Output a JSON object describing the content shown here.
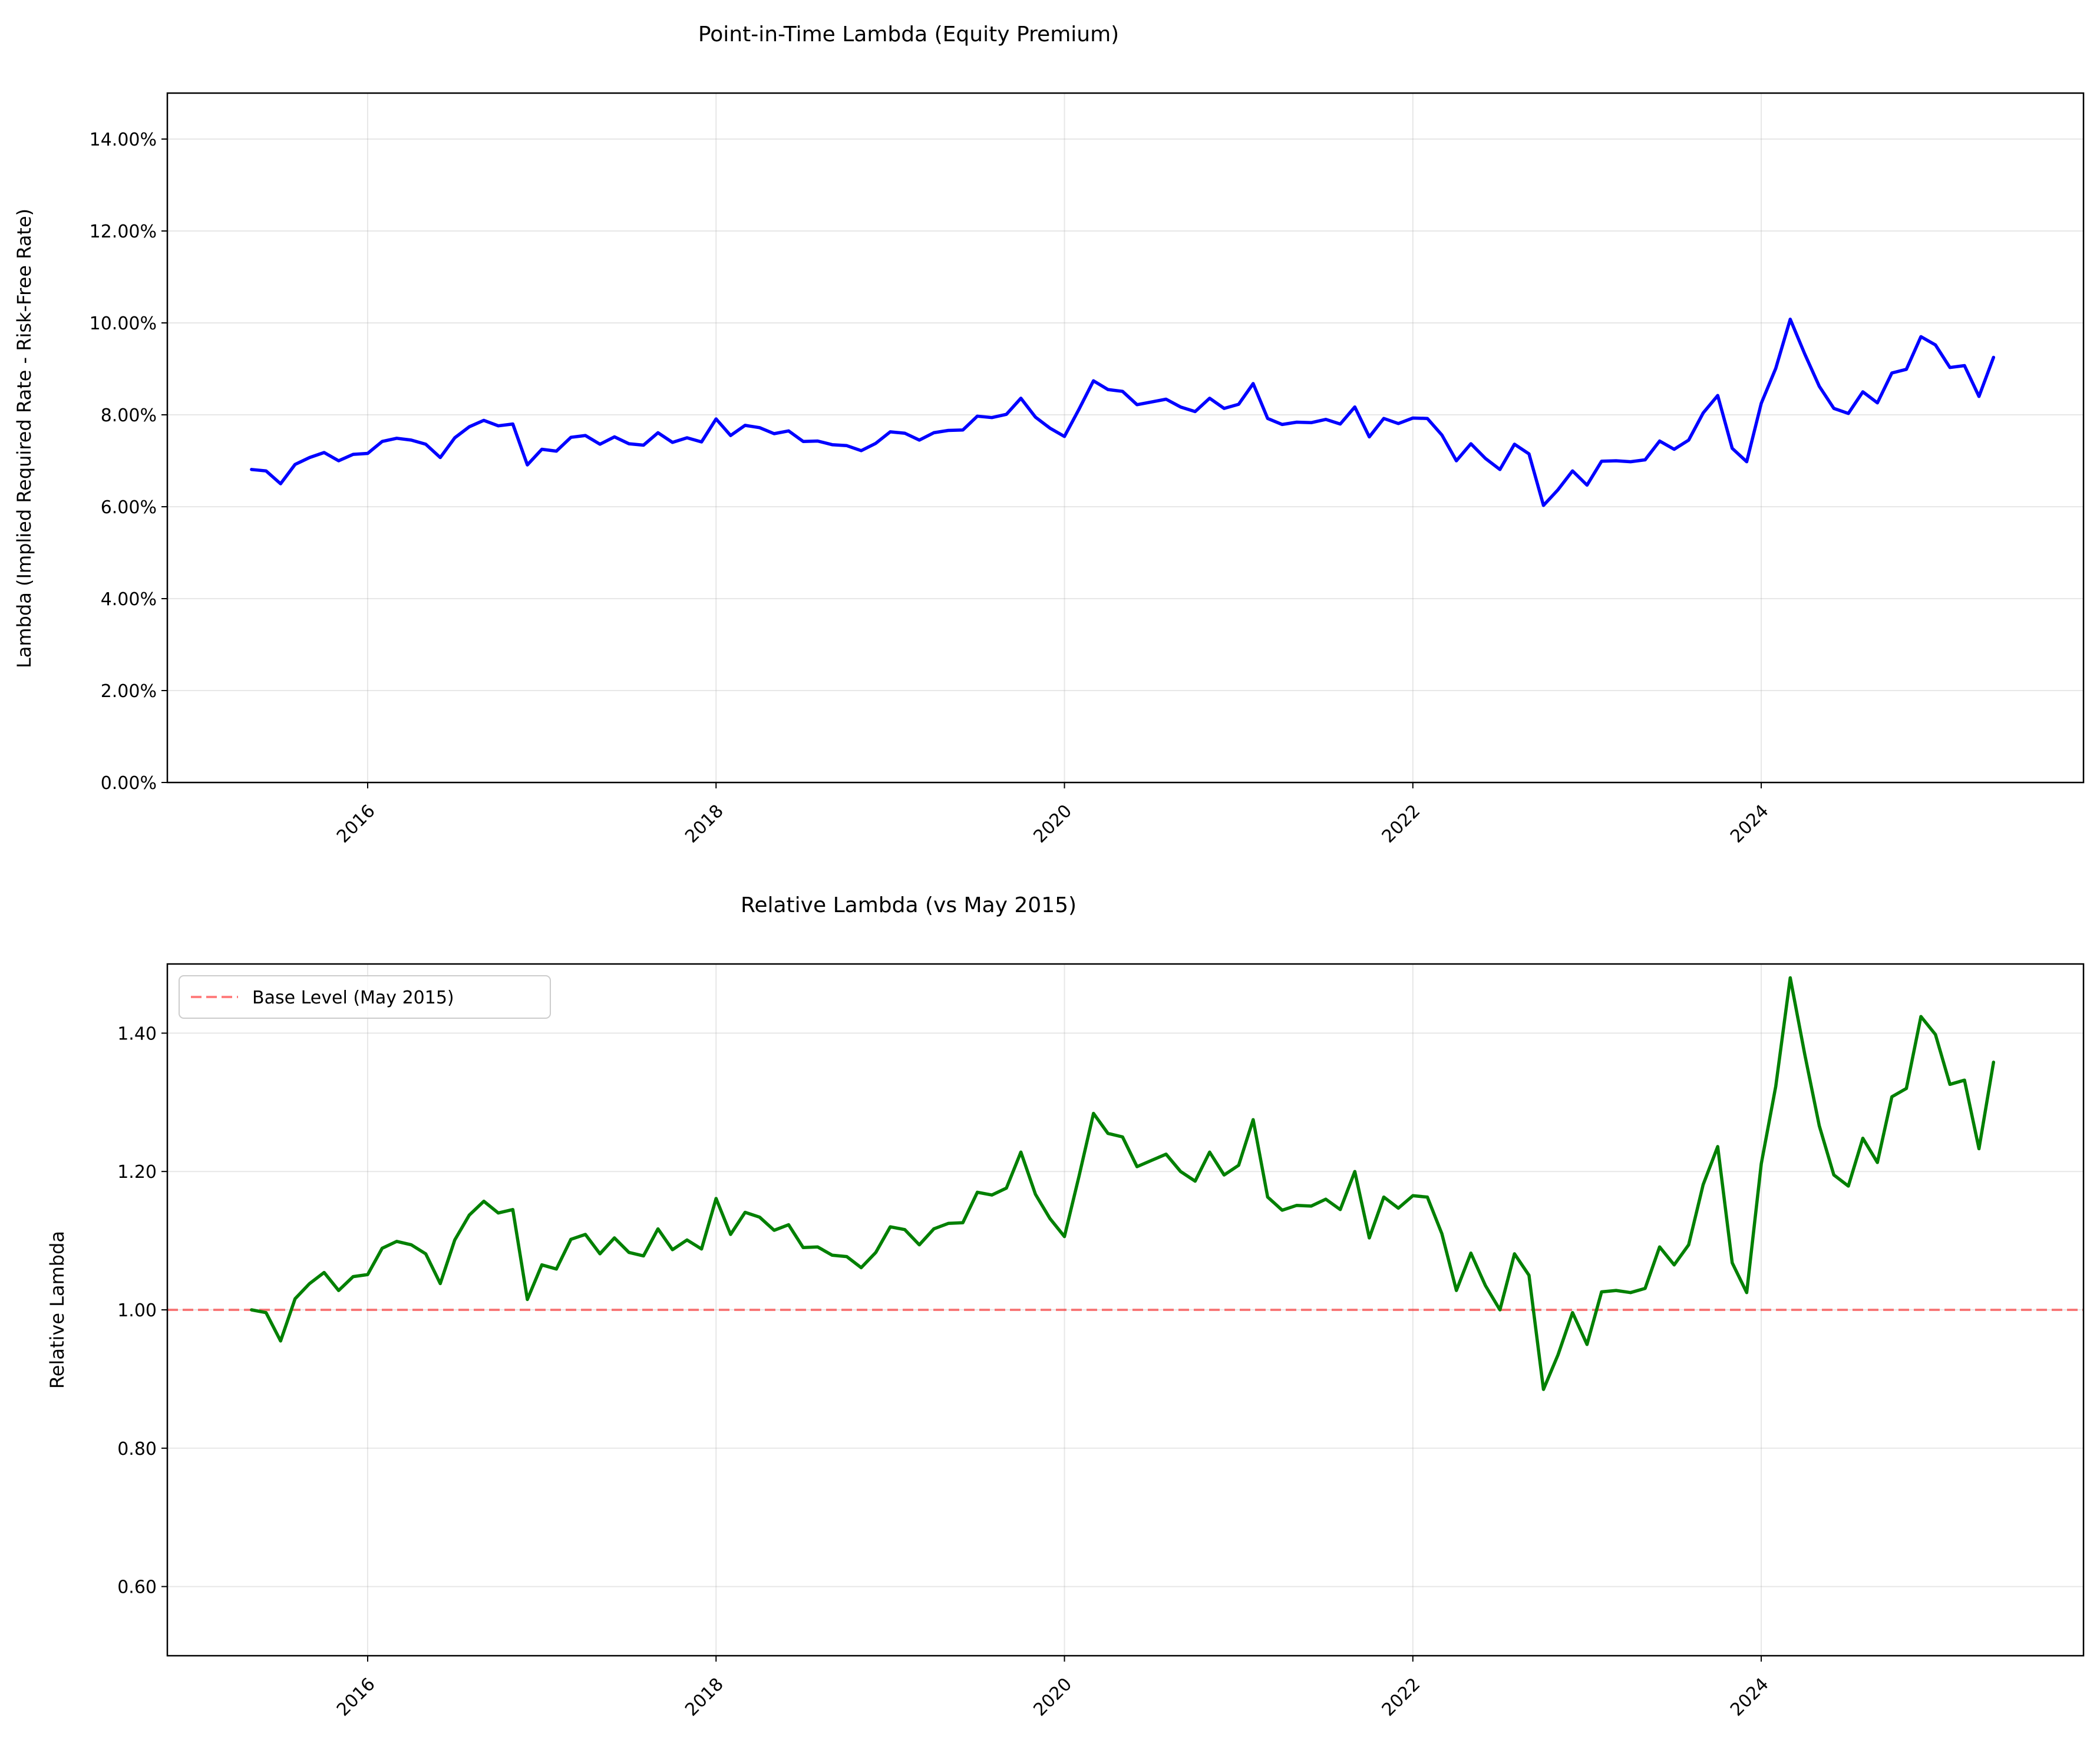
{
  "chart_data": [
    {
      "type": "line",
      "title": "Point-in-Time Lambda (Equity Premium)",
      "xlabel": "",
      "ylabel": "Lambda (Implied Required Rate - Risk-Free Rate)",
      "x_start": "2015-05",
      "x_frequency": "monthly",
      "xlim": [
        2014.85,
        2025.85
      ],
      "xticks": [
        2016,
        2018,
        2020,
        2022,
        2024
      ],
      "xtick_labels": [
        "2016",
        "2018",
        "2020",
        "2022",
        "2024"
      ],
      "ylim": [
        0,
        0.15
      ],
      "yticks": [
        0,
        0.02,
        0.04,
        0.06,
        0.08,
        0.1,
        0.12,
        0.14
      ],
      "ytick_labels": [
        "0.00%",
        "2.00%",
        "4.00%",
        "6.00%",
        "8.00%",
        "10.00%",
        "12.00%",
        "14.00%"
      ],
      "grid": true,
      "series": [
        {
          "color": "#0000ff",
          "values": [
            0.0681,
            0.0678,
            0.065,
            0.0692,
            0.0707,
            0.0718,
            0.07,
            0.0714,
            0.0716,
            0.0742,
            0.0749,
            0.0745,
            0.0736,
            0.0707,
            0.075,
            0.0774,
            0.0788,
            0.0776,
            0.078,
            0.0691,
            0.0725,
            0.0721,
            0.0751,
            0.0755,
            0.0736,
            0.0752,
            0.0737,
            0.0734,
            0.0761,
            0.074,
            0.075,
            0.0741,
            0.0791,
            0.0755,
            0.0777,
            0.0772,
            0.0759,
            0.0765,
            0.0742,
            0.0743,
            0.0735,
            0.0733,
            0.0722,
            0.0738,
            0.0763,
            0.076,
            0.0745,
            0.0761,
            0.0766,
            0.0767,
            0.0797,
            0.0794,
            0.0801,
            0.0836,
            0.0795,
            0.0771,
            0.0753,
            0.0812,
            0.0874,
            0.0855,
            0.0851,
            0.0822,
            0.0828,
            0.0834,
            0.0817,
            0.0807,
            0.0836,
            0.0814,
            0.0823,
            0.0868,
            0.0792,
            0.0779,
            0.0784,
            0.0783,
            0.079,
            0.078,
            0.0817,
            0.0752,
            0.0792,
            0.0781,
            0.0793,
            0.0792,
            0.0756,
            0.07,
            0.0737,
            0.0705,
            0.0681,
            0.0736,
            0.0715,
            0.0603,
            0.0637,
            0.0678,
            0.0647,
            0.0699,
            0.07,
            0.0698,
            0.0702,
            0.0743,
            0.0725,
            0.0745,
            0.0804,
            0.0842,
            0.0727,
            0.0698,
            0.0825,
            0.0901,
            0.1008,
            0.0932,
            0.0862,
            0.0814,
            0.0803,
            0.085,
            0.0826,
            0.0891,
            0.0899,
            0.097,
            0.0952,
            0.0903,
            0.0907,
            0.084,
            0.0925
          ]
        }
      ]
    },
    {
      "type": "line",
      "title": "Relative Lambda (vs May 2015)",
      "xlabel": "",
      "ylabel": "Relative Lambda",
      "x_start": "2015-05",
      "x_frequency": "monthly",
      "xlim": [
        2014.85,
        2025.85
      ],
      "xticks": [
        2016,
        2018,
        2020,
        2022,
        2024
      ],
      "xtick_labels": [
        "2016",
        "2018",
        "2020",
        "2022",
        "2024"
      ],
      "ylim": [
        0.5,
        1.5
      ],
      "yticks": [
        0.6,
        0.8,
        1.0,
        1.2,
        1.4
      ],
      "ytick_labels": [
        "0.60",
        "0.80",
        "1.00",
        "1.20",
        "1.40"
      ],
      "grid": true,
      "legend": "top-left",
      "reference_line": {
        "y": 1.0,
        "name": "Base Level (May 2015)",
        "color": "#ff0000",
        "style": "dashed"
      },
      "series": [
        {
          "color": "#008000",
          "values": [
            1.0,
            0.996,
            0.955,
            1.016,
            1.038,
            1.054,
            1.028,
            1.048,
            1.051,
            1.089,
            1.099,
            1.094,
            1.081,
            1.038,
            1.101,
            1.137,
            1.157,
            1.14,
            1.145,
            1.015,
            1.065,
            1.059,
            1.102,
            1.109,
            1.081,
            1.104,
            1.083,
            1.078,
            1.117,
            1.087,
            1.101,
            1.088,
            1.161,
            1.109,
            1.141,
            1.134,
            1.115,
            1.123,
            1.09,
            1.091,
            1.079,
            1.077,
            1.061,
            1.083,
            1.12,
            1.116,
            1.094,
            1.117,
            1.125,
            1.126,
            1.17,
            1.166,
            1.176,
            1.228,
            1.167,
            1.132,
            1.106,
            1.193,
            1.284,
            1.255,
            1.25,
            1.207,
            1.216,
            1.225,
            1.2,
            1.186,
            1.228,
            1.195,
            1.209,
            1.275,
            1.163,
            1.144,
            1.151,
            1.15,
            1.16,
            1.145,
            1.2,
            1.104,
            1.163,
            1.147,
            1.165,
            1.163,
            1.11,
            1.028,
            1.082,
            1.035,
            1.0,
            1.081,
            1.05,
            0.885,
            0.935,
            0.996,
            0.95,
            1.026,
            1.028,
            1.025,
            1.031,
            1.091,
            1.065,
            1.094,
            1.181,
            1.236,
            1.068,
            1.025,
            1.211,
            1.323,
            1.48,
            1.369,
            1.266,
            1.195,
            1.179,
            1.248,
            1.213,
            1.308,
            1.32,
            1.424,
            1.398,
            1.326,
            1.332,
            1.233,
            1.358
          ]
        }
      ]
    }
  ]
}
